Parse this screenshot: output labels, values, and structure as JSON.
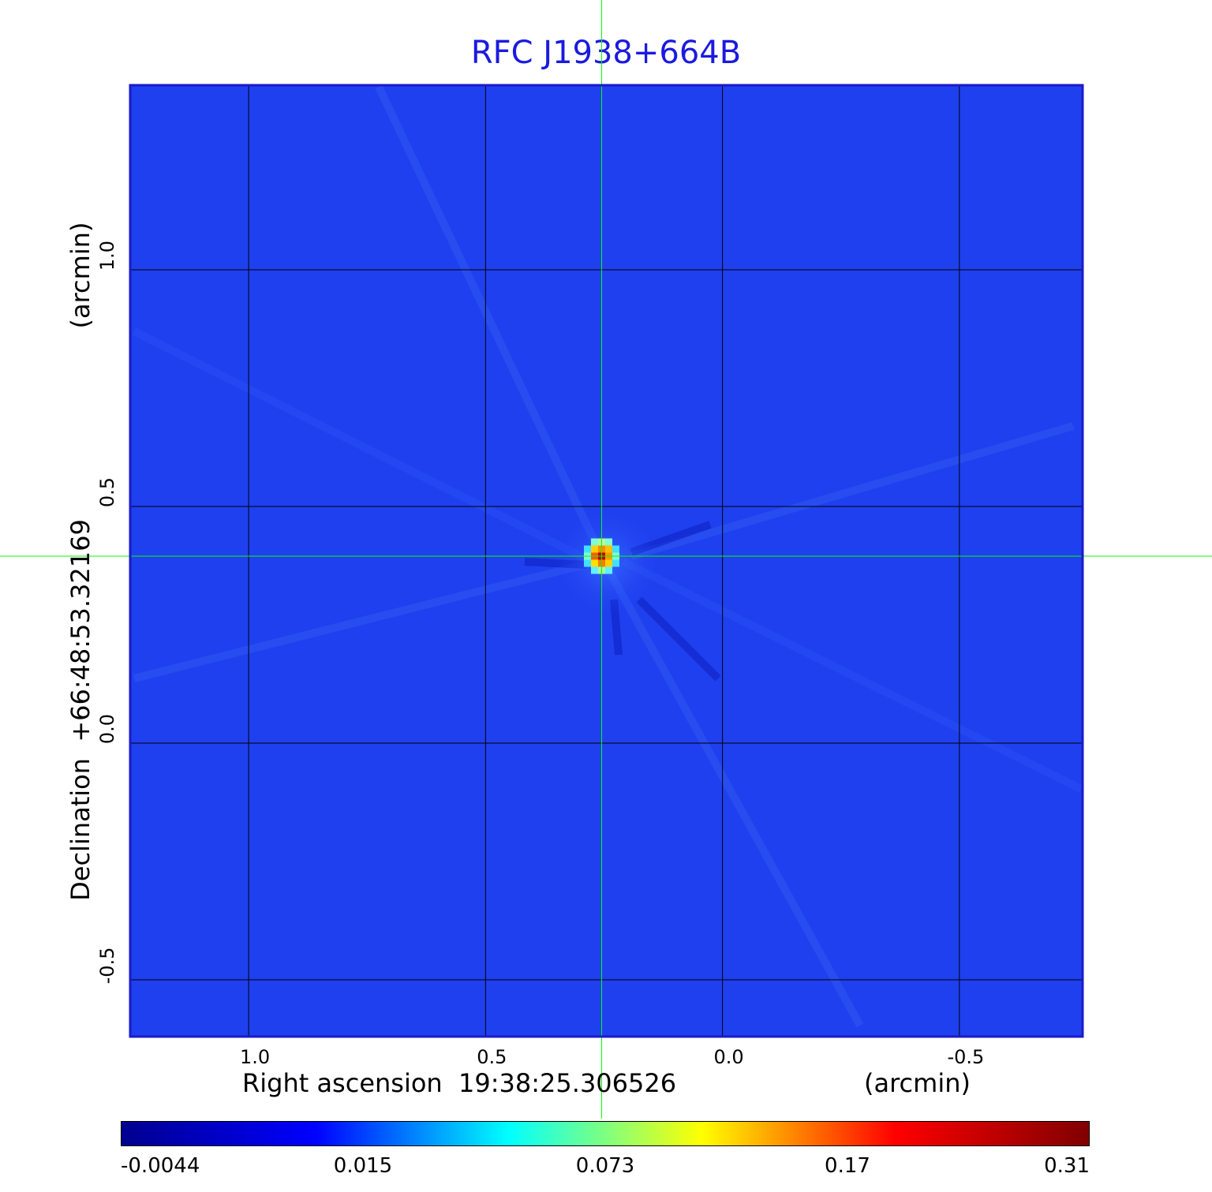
{
  "chart_data": {
    "type": "heatmap",
    "title": "RFC J1938+664B",
    "xlabel": "Right ascension  19:38:25.306526",
    "xunit": "(arcmin)",
    "ylabel": "Declination  +66:48:53.32169",
    "yunit": "(arcmin)",
    "xlim": [
      1.25,
      -0.76
    ],
    "ylim": [
      -0.62,
      1.39
    ],
    "xticks": [
      1.0,
      0.5,
      0.0,
      -0.5
    ],
    "xtick_labels": [
      "1.0",
      "0.5",
      "0.0",
      "-0.5"
    ],
    "yticks": [
      1.0,
      0.5,
      0.0,
      -0.5
    ],
    "ytick_labels": [
      "1.0",
      "0.5",
      "0.0",
      "-0.5"
    ],
    "grid": true,
    "colormap": "jet",
    "crosshair": {
      "x": 0.255,
      "y": 0.395,
      "color": "#00ff00"
    },
    "source_peak": {
      "x": 0.255,
      "y": 0.395,
      "value": 0.31
    },
    "background_level": 0.003,
    "colorbar": {
      "tick_labels": [
        "-0.0044",
        "0.015",
        "0.073",
        "0.17",
        "0.31"
      ],
      "tick_values": [
        -0.0044,
        0.015,
        0.073,
        0.17,
        0.31
      ],
      "colors": [
        "#00008f",
        "#0000ff",
        "#00ffff",
        "#ffff00",
        "#ff0000",
        "#800000"
      ]
    }
  }
}
